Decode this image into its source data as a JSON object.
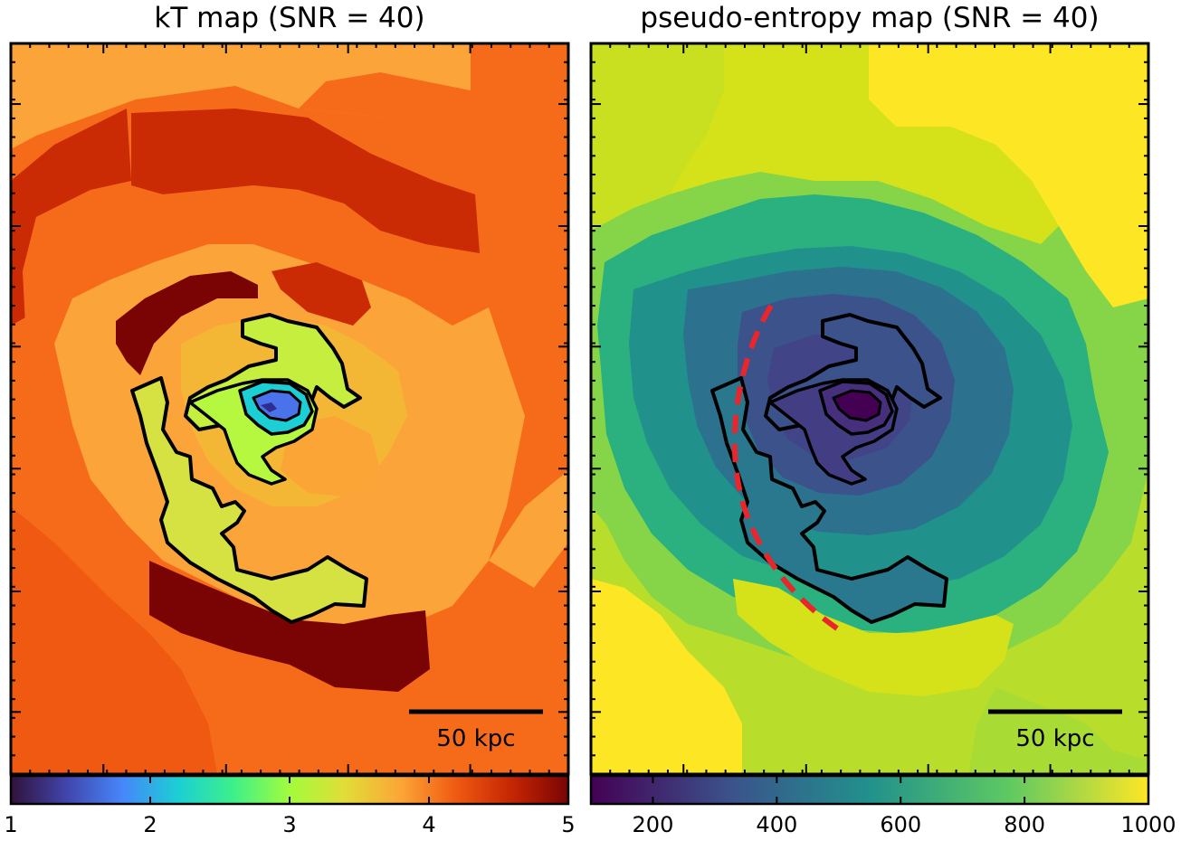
{
  "panels": [
    {
      "title": "kT map (SNR = 40)",
      "scalebar_label": "50 kpc",
      "colormap": "turbo",
      "colorbar": {
        "min": 1,
        "max": 5,
        "ticks": [
          "1",
          "2",
          "3",
          "4",
          "5"
        ]
      }
    },
    {
      "title": "pseudo-entropy map (SNR = 40)",
      "scalebar_label": "50 kpc",
      "colormap": "viridis",
      "colorbar": {
        "min": 100,
        "max": 1000,
        "ticks": [
          "200",
          "400",
          "600",
          "800",
          "1000"
        ]
      }
    }
  ],
  "colors": {
    "contour": "#000000",
    "arc": "#e8262b",
    "kt_palette": [
      "#30123b",
      "#4686fb",
      "#1ae4b6",
      "#a2fc3c",
      "#fabb3a",
      "#f66b19",
      "#ca2a04",
      "#7a0403"
    ],
    "entropy_palette": [
      "#440154",
      "#3b528b",
      "#21918c",
      "#5ec962",
      "#fde725"
    ]
  }
}
